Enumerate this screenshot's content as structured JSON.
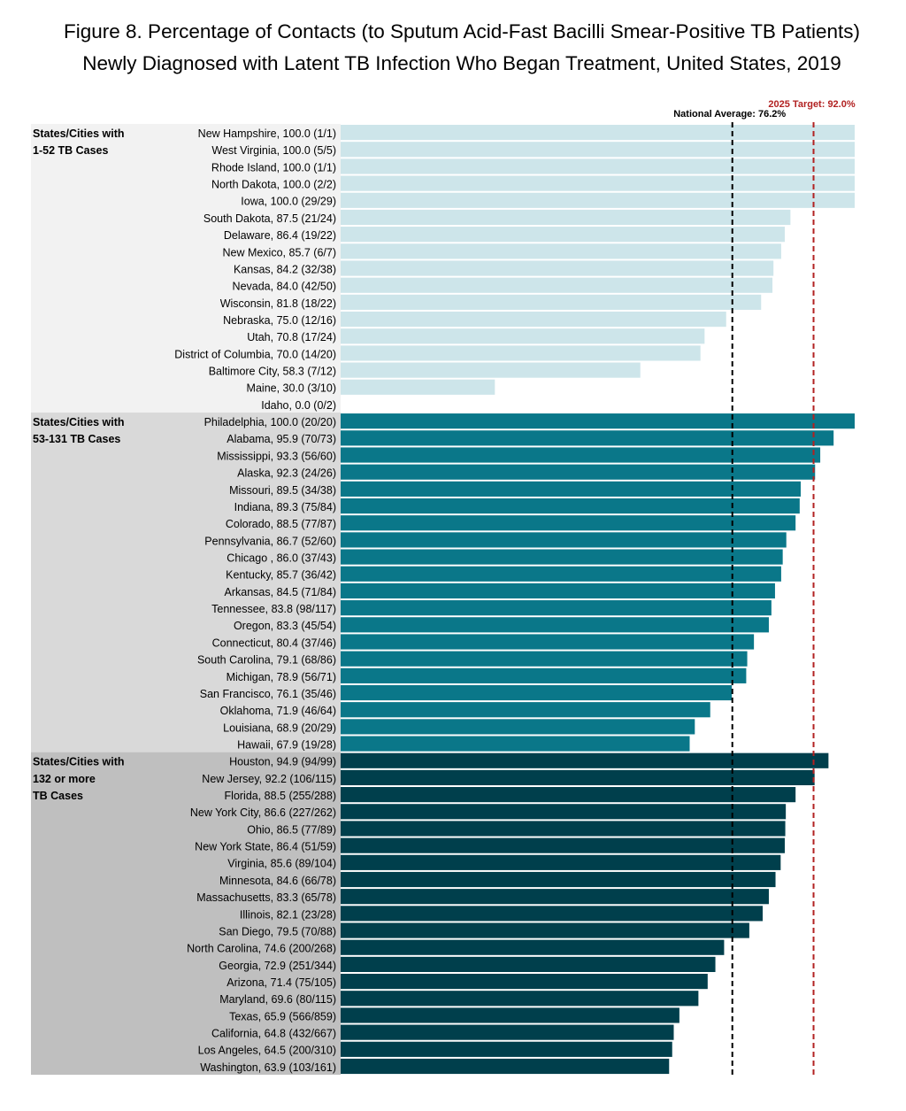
{
  "chart_data": {
    "type": "bar",
    "orientation": "horizontal",
    "title": [
      "Figure 8. Percentage of Contacts (to Sputum Acid-Fast Bacilli Smear-Positive TB Patients)",
      "Newly Diagnosed with Latent TB Infection Who Began Treatment, United States, 2019"
    ],
    "xlim": [
      0,
      100
    ],
    "grid": false,
    "reference_lines": [
      {
        "label": "National Average: 76.2%",
        "value": 76.2,
        "color": "#000000"
      },
      {
        "label": "2025 Target: 92.0%",
        "value": 92.0,
        "color": "#b22222"
      }
    ],
    "groups": [
      {
        "label": [
          "States/Cities with",
          "1-52 TB Cases"
        ],
        "background": "#f2f2f2",
        "bar_color": "#cde5ea",
        "items": [
          {
            "label": "New Hampshire, 100.0 (1/1)",
            "value": 100.0
          },
          {
            "label": "West Virginia, 100.0 (5/5)",
            "value": 100.0
          },
          {
            "label": "Rhode Island, 100.0 (1/1)",
            "value": 100.0
          },
          {
            "label": "North Dakota, 100.0 (2/2)",
            "value": 100.0
          },
          {
            "label": "Iowa, 100.0 (29/29)",
            "value": 100.0
          },
          {
            "label": "South Dakota, 87.5 (21/24)",
            "value": 87.5
          },
          {
            "label": "Delaware, 86.4 (19/22)",
            "value": 86.4
          },
          {
            "label": "New Mexico, 85.7 (6/7)",
            "value": 85.7
          },
          {
            "label": "Kansas, 84.2 (32/38)",
            "value": 84.2
          },
          {
            "label": "Nevada, 84.0 (42/50)",
            "value": 84.0
          },
          {
            "label": "Wisconsin, 81.8 (18/22)",
            "value": 81.8
          },
          {
            "label": "Nebraska, 75.0 (12/16)",
            "value": 75.0
          },
          {
            "label": "Utah, 70.8 (17/24)",
            "value": 70.8
          },
          {
            "label": "District of Columbia, 70.0 (14/20)",
            "value": 70.0
          },
          {
            "label": "Baltimore City, 58.3 (7/12)",
            "value": 58.3
          },
          {
            "label": "Maine, 30.0 (3/10)",
            "value": 30.0
          },
          {
            "label": "Idaho, 0.0 (0/2)",
            "value": 0.0
          }
        ]
      },
      {
        "label": [
          "States/Cities with",
          "53-131 TB Cases"
        ],
        "background": "#d9d9d9",
        "bar_color": "#0a7789",
        "items": [
          {
            "label": "Philadelphia, 100.0 (20/20)",
            "value": 100.0
          },
          {
            "label": "Alabama, 95.9 (70/73)",
            "value": 95.9
          },
          {
            "label": "Mississippi, 93.3 (56/60)",
            "value": 93.3
          },
          {
            "label": "Alaska, 92.3 (24/26)",
            "value": 92.3
          },
          {
            "label": "Missouri, 89.5 (34/38)",
            "value": 89.5
          },
          {
            "label": "Indiana, 89.3 (75/84)",
            "value": 89.3
          },
          {
            "label": "Colorado, 88.5 (77/87)",
            "value": 88.5
          },
          {
            "label": "Pennsylvania, 86.7 (52/60)",
            "value": 86.7
          },
          {
            "label": "Chicago , 86.0 (37/43)",
            "value": 86.0
          },
          {
            "label": "Kentucky, 85.7 (36/42)",
            "value": 85.7
          },
          {
            "label": "Arkansas, 84.5 (71/84)",
            "value": 84.5
          },
          {
            "label": "Tennessee, 83.8 (98/117)",
            "value": 83.8
          },
          {
            "label": "Oregon, 83.3 (45/54)",
            "value": 83.3
          },
          {
            "label": "Connecticut, 80.4 (37/46)",
            "value": 80.4
          },
          {
            "label": "South Carolina, 79.1 (68/86)",
            "value": 79.1
          },
          {
            "label": "Michigan, 78.9 (56/71)",
            "value": 78.9
          },
          {
            "label": "San Francisco, 76.1 (35/46)",
            "value": 76.1
          },
          {
            "label": "Oklahoma, 71.9 (46/64)",
            "value": 71.9
          },
          {
            "label": "Louisiana, 68.9 (20/29)",
            "value": 68.9
          },
          {
            "label": "Hawaii, 67.9 (19/28)",
            "value": 67.9
          }
        ]
      },
      {
        "label": [
          "States/Cities with",
          "132 or more",
          "TB Cases"
        ],
        "background": "#bfbfbf",
        "bar_color": "#003f4c",
        "items": [
          {
            "label": "Houston, 94.9 (94/99)",
            "value": 94.9
          },
          {
            "label": "New Jersey, 92.2 (106/115)",
            "value": 92.2
          },
          {
            "label": "Florida, 88.5 (255/288)",
            "value": 88.5
          },
          {
            "label": "New York City, 86.6 (227/262)",
            "value": 86.6
          },
          {
            "label": "Ohio, 86.5 (77/89)",
            "value": 86.5
          },
          {
            "label": "New York State, 86.4 (51/59)",
            "value": 86.4
          },
          {
            "label": "Virginia, 85.6 (89/104)",
            "value": 85.6
          },
          {
            "label": "Minnesota, 84.6 (66/78)",
            "value": 84.6
          },
          {
            "label": "Massachusetts, 83.3 (65/78)",
            "value": 83.3
          },
          {
            "label": "Illinois, 82.1 (23/28)",
            "value": 82.1
          },
          {
            "label": "San Diego, 79.5 (70/88)",
            "value": 79.5
          },
          {
            "label": "North Carolina, 74.6 (200/268)",
            "value": 74.6
          },
          {
            "label": "Georgia, 72.9 (251/344)",
            "value": 72.9
          },
          {
            "label": "Arizona, 71.4 (75/105)",
            "value": 71.4
          },
          {
            "label": "Maryland, 69.6 (80/115)",
            "value": 69.6
          },
          {
            "label": "Texas, 65.9 (566/859)",
            "value": 65.9
          },
          {
            "label": "California, 64.8 (432/667)",
            "value": 64.8
          },
          {
            "label": "Los Angeles, 64.5 (200/310)",
            "value": 64.5
          },
          {
            "label": "Washington, 63.9 (103/161)",
            "value": 63.9
          }
        ]
      }
    ]
  }
}
